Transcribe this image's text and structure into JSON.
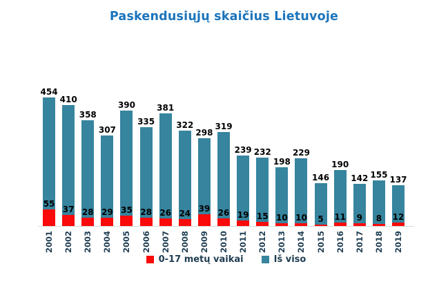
{
  "title": "Paskendusiųjų skaičius Lietuvoje",
  "legend": {
    "items": [
      {
        "label": "0-17 metų vaikai",
        "color": "#fa0a0a"
      },
      {
        "label": "Iš viso",
        "color": "#36849e"
      }
    ]
  },
  "colors": {
    "background": "#ffffff",
    "title": "#1b74bc",
    "total_bar": "#36849e",
    "children_bar": "#fa0a0a",
    "value_label": "#000000",
    "year_label": "#1f3d52",
    "legend_text": "#1f3d52",
    "axis_line": "#d9d9d9"
  },
  "chart_data": {
    "type": "bar",
    "subtype": "overlay-column",
    "title": "Paskendusiųjų skaičius Lietuvoje",
    "categories": [
      "2001",
      "2002",
      "2003",
      "2004",
      "2005",
      "2006",
      "2007",
      "2008",
      "2009",
      "2010",
      "2011",
      "2012",
      "2013",
      "2014",
      "2015",
      "2016",
      "2017",
      "2018",
      "2019"
    ],
    "series": [
      {
        "name": "0-17 metų vaikai",
        "color": "#fa0a0a",
        "values": [
          55,
          37,
          28,
          29,
          35,
          28,
          26,
          24,
          39,
          26,
          19,
          15,
          10,
          10,
          5,
          11,
          9,
          8,
          12
        ]
      },
      {
        "name": "Iš viso",
        "color": "#36849e",
        "values": [
          454,
          410,
          358,
          307,
          390,
          335,
          381,
          322,
          298,
          319,
          239,
          232,
          198,
          229,
          146,
          190,
          142,
          155,
          137
        ]
      }
    ],
    "xlabel": "",
    "ylabel": "",
    "ylim": [
      0,
      475
    ],
    "grid": false,
    "legend_position": "bottom",
    "value_labels": "at-bar-ends"
  }
}
